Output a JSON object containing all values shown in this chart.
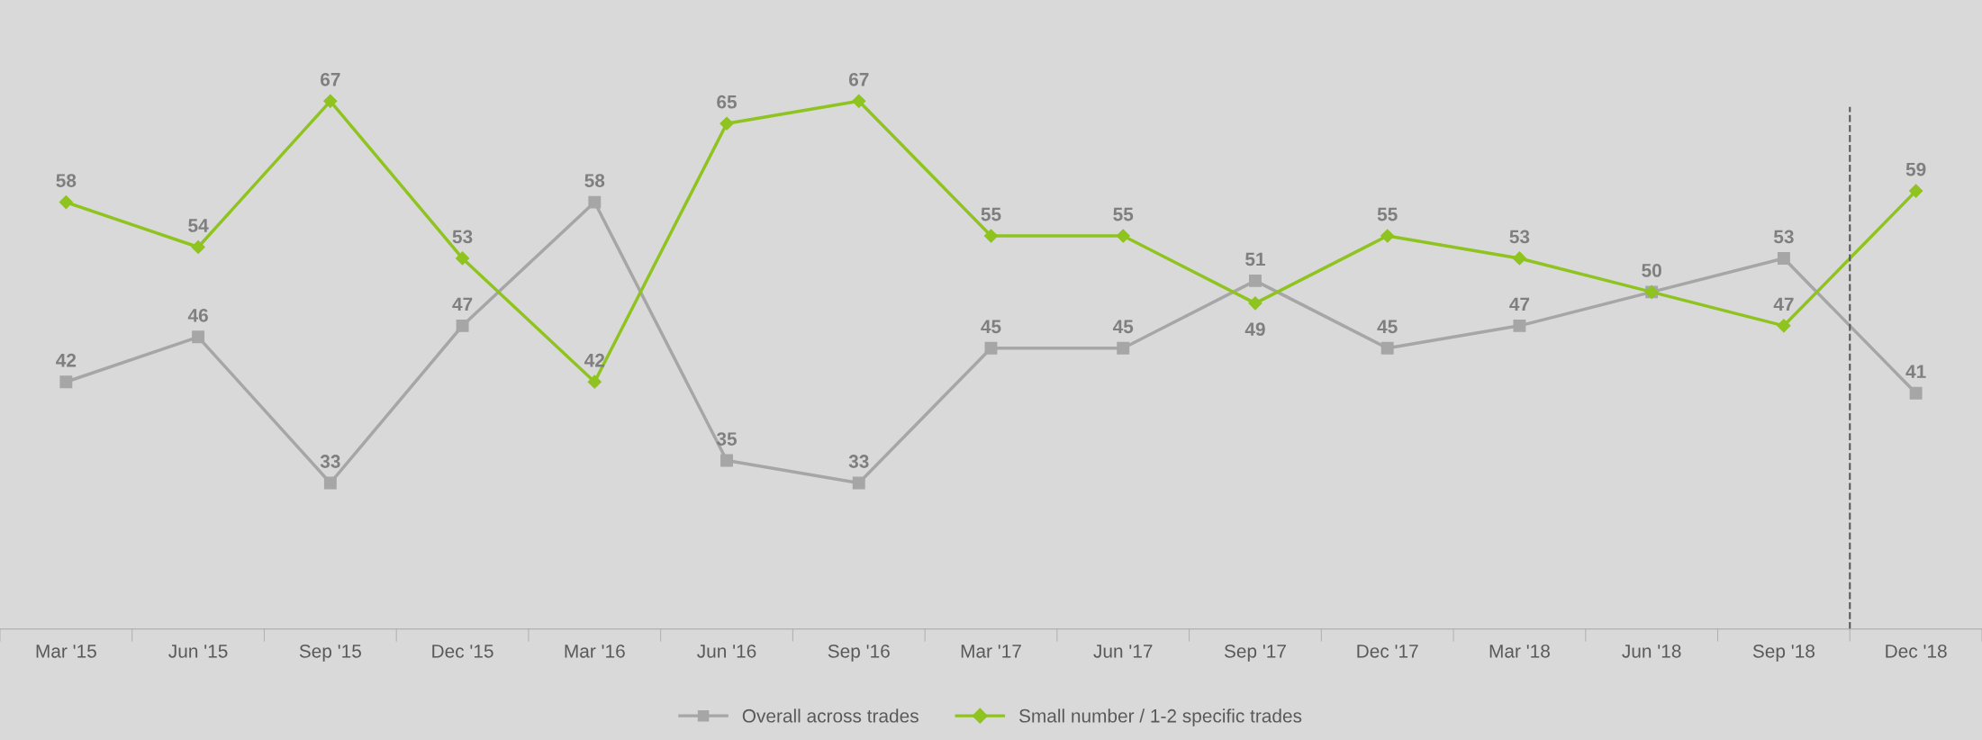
{
  "chart_data": {
    "type": "line",
    "categories": [
      "Mar '15",
      "Jun '15",
      "Sep '15",
      "Dec '15",
      "Mar '16",
      "Jun '16",
      "Sep '16",
      "Mar '17",
      "Jun '17",
      "Sep '17",
      "Dec '17",
      "Mar '18",
      "Jun '18",
      "Sep '18",
      "Dec '18"
    ],
    "series": [
      {
        "name": "Overall across trades",
        "color": "#a6a6a6",
        "marker": "square",
        "values": [
          42,
          46,
          33,
          47,
          58,
          35,
          33,
          45,
          45,
          51,
          45,
          47,
          50,
          53,
          41
        ],
        "value_labels": [
          "42",
          "46",
          "33",
          "47",
          "58",
          "35",
          "33",
          "45",
          "45",
          "51",
          "45",
          "47",
          "50",
          "53",
          "41"
        ]
      },
      {
        "name": "Small number / 1-2 specific trades",
        "color": "#8fc31f",
        "marker": "diamond",
        "values": [
          58,
          54,
          67,
          53,
          42,
          65,
          67,
          55,
          55,
          49,
          55,
          53,
          50,
          47,
          59
        ],
        "value_labels": [
          "58",
          "54",
          "67",
          "53",
          "42",
          "65",
          "67",
          "55",
          "55",
          "49",
          "55",
          "53",
          null,
          "47",
          "59"
        ]
      }
    ],
    "ylim": [
      20,
      76
    ],
    "tick_labels": "x",
    "grid": false,
    "legend": "bottom",
    "line_style": "solid"
  }
}
